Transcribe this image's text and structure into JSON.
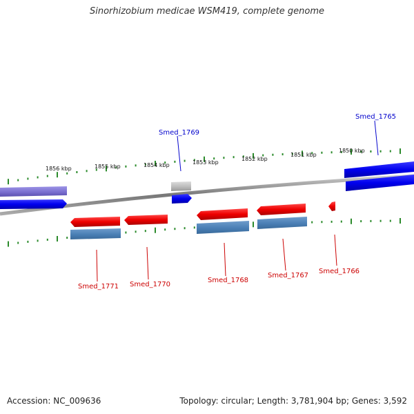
{
  "title": "Sinorhizobium medicae WSM419, complete genome",
  "footer": {
    "accession": "Accession: NC_009636",
    "summary": "Topology: circular; Length: 3,781,904 bp; Genes: 3,592"
  },
  "scale_labels": [
    "1856 kbp",
    "1855 kbp",
    "1854 kbp",
    "1853 kbp",
    "1852 kbp",
    "1851 kbp",
    "1850 kbp"
  ],
  "genes_top": [
    {
      "id": "Smed_1769",
      "color": "#0000cc"
    },
    {
      "id": "Smed_1765",
      "color": "#0000cc"
    }
  ],
  "genes_bottom": [
    {
      "id": "Smed_1771",
      "color": "#cc0000"
    },
    {
      "id": "Smed_1770",
      "color": "#cc0000"
    },
    {
      "id": "Smed_1768",
      "color": "#cc0000"
    },
    {
      "id": "Smed_1767",
      "color": "#cc0000"
    },
    {
      "id": "Smed_1766",
      "color": "#cc0000"
    }
  ],
  "colors": {
    "forward_cds": "#0000ee",
    "reverse_cds": "#ee0000",
    "gene_steel": "#4a7fb5",
    "gene_purple": "#7a6fd0",
    "pseudo_gray": "#bbbbbb",
    "tick_green": "#2a8a2a",
    "backbone": "#888888"
  }
}
